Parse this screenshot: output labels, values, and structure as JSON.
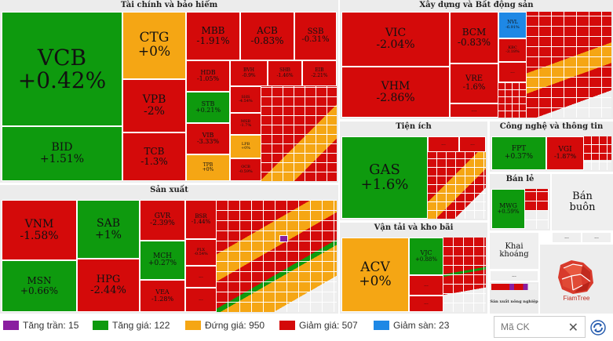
{
  "sectors": {
    "finance": "Tài chính và bảo hiểm",
    "construction": "Xây dựng và Bất động sản",
    "production": "Sản xuất",
    "utilities": "Tiện ích",
    "tech": "Công nghệ và thông tin",
    "retail": "Bán lẻ",
    "wholesale": "Bán buôn",
    "transport": "Vận tải và kho bãi",
    "mining": "Khai khoáng",
    "agri": "Sản xuất nông nghiệp"
  },
  "stocks": {
    "VCB": {
      "code": "VCB",
      "chg": "+0.42%"
    },
    "BID": {
      "code": "BID",
      "chg": "+1.51%"
    },
    "CTG": {
      "code": "CTG",
      "chg": "+0%"
    },
    "VPB": {
      "code": "VPB",
      "chg": "-2%"
    },
    "TCB": {
      "code": "TCB",
      "chg": "-1.3%"
    },
    "MBB": {
      "code": "MBB",
      "chg": "-1.91%"
    },
    "ACB": {
      "code": "ACB",
      "chg": "-0.83%"
    },
    "SSB": {
      "code": "SSB",
      "chg": "-0.31%"
    },
    "HDB": {
      "code": "HDB",
      "chg": "-1.05%"
    },
    "BVH": {
      "code": "BVH",
      "chg": "-0.9%"
    },
    "SHB": {
      "code": "SHB",
      "chg": "-1.46%"
    },
    "EIB": {
      "code": "EIB",
      "chg": "-2.21%"
    },
    "STB": {
      "code": "STB",
      "chg": "+0.21%"
    },
    "SHS": {
      "code": "SHS",
      "chg": "-4.54%"
    },
    "VIB": {
      "code": "VIB",
      "chg": "-3.33%"
    },
    "MSB": {
      "code": "MSB",
      "chg": "-1.7%"
    },
    "LPB": {
      "code": "LPB",
      "chg": "+0%"
    },
    "TPB": {
      "code": "TPB",
      "chg": "+0%"
    },
    "OCB": {
      "code": "OCB",
      "chg": "-0.59%"
    },
    "VIC": {
      "code": "VIC",
      "chg": "-2.04%"
    },
    "VHM": {
      "code": "VHM",
      "chg": "-2.86%"
    },
    "BCM": {
      "code": "BCM",
      "chg": "-0.83%"
    },
    "VRE": {
      "code": "VRE",
      "chg": "-1.6%"
    },
    "NVL": {
      "code": "NVL",
      "chg": "-6.91%"
    },
    "KBC": {
      "code": "KBC",
      "chg": "-3.18%"
    },
    "VNM": {
      "code": "VNM",
      "chg": "-1.58%"
    },
    "MSN": {
      "code": "MSN",
      "chg": "+0.66%"
    },
    "SAB": {
      "code": "SAB",
      "chg": "+1%"
    },
    "HPG": {
      "code": "HPG",
      "chg": "-2.44%"
    },
    "GVR": {
      "code": "GVR",
      "chg": "-2.39%"
    },
    "BSR": {
      "code": "BSR",
      "chg": "-1.44%"
    },
    "MCH": {
      "code": "MCH",
      "chg": "+0.27%"
    },
    "PLX": {
      "code": "PLX",
      "chg": "-0.54%"
    },
    "VEA": {
      "code": "VEA",
      "chg": "-1.28%"
    },
    "GAS": {
      "code": "GAS",
      "chg": "+1.6%"
    },
    "FPT": {
      "code": "FPT",
      "chg": "+0.37%"
    },
    "VGI": {
      "code": "VGI",
      "chg": "-1.87%"
    },
    "MWG": {
      "code": "MWG",
      "chg": "+0.59%"
    },
    "ACV": {
      "code": "ACV",
      "chg": "+0%"
    },
    "VJC": {
      "code": "VJC",
      "chg": "+0.88%"
    }
  },
  "more_label": "...",
  "legend": {
    "ceiling": "Tăng trần: 15",
    "up": "Tăng giá: 122",
    "flat": "Đứng giá: 950",
    "down": "Giảm giá: 507",
    "floor": "Giảm sàn: 23"
  },
  "colors": {
    "ceiling": "#8a1ea0",
    "up": "#0e9a0e",
    "flat": "#f5a614",
    "down": "#d40a0a",
    "floor": "#1e88e5"
  },
  "search": {
    "placeholder": "Mã CK"
  },
  "brand": {
    "name": "FiamTree"
  },
  "icons": {
    "clear": "close-icon",
    "refresh": "refresh-icon"
  }
}
